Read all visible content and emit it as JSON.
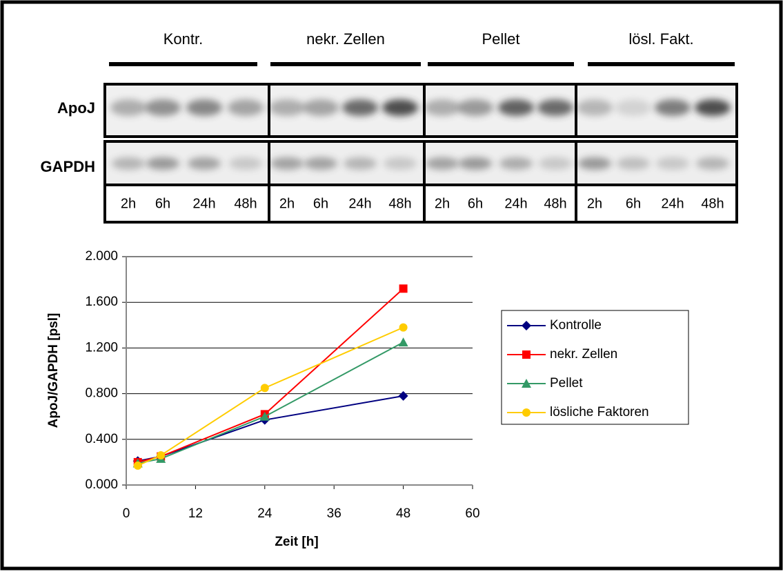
{
  "blot": {
    "groups": [
      {
        "label": "Kontr.",
        "lanes": [
          "2h",
          "6h",
          "24h",
          "48h"
        ]
      },
      {
        "label": "nekr. Zellen",
        "lanes": [
          "2h",
          "6h",
          "24h",
          "48h"
        ]
      },
      {
        "label": "Pellet",
        "lanes": [
          "2h",
          "6h",
          "24h",
          "48h"
        ]
      },
      {
        "label": "lösl. Fakt.",
        "lanes": [
          "2h",
          "6h",
          "24h",
          "48h"
        ]
      }
    ],
    "rows": [
      "ApoJ",
      "GAPDH"
    ]
  },
  "chart_data": {
    "type": "line",
    "x_label": "Zeit [h]",
    "y_label": "ApoJ/GAPDH [psl]",
    "x": [
      2,
      6,
      24,
      48
    ],
    "xlim": [
      0,
      60
    ],
    "xticks": [
      0,
      12,
      24,
      36,
      48,
      60
    ],
    "ylim": [
      0,
      2
    ],
    "yticks": [
      {
        "value": 0,
        "label": "0.000"
      },
      {
        "value": 0.4,
        "label": "0.400"
      },
      {
        "value": 0.8,
        "label": "0.800"
      },
      {
        "value": 1.2,
        "label": "1.200"
      },
      {
        "value": 1.6,
        "label": "1.600"
      },
      {
        "value": 2,
        "label": "2.000"
      }
    ],
    "grid": true,
    "legend": "right",
    "series": [
      {
        "name": "Kontrolle",
        "color": "#000080",
        "marker": "diamond",
        "values": [
          0.21,
          0.25,
          0.57,
          0.78
        ]
      },
      {
        "name": "nekr. Zellen",
        "color": "#ff0000",
        "marker": "square",
        "values": [
          0.2,
          0.25,
          0.62,
          1.72
        ]
      },
      {
        "name": "Pellet",
        "color": "#339966",
        "marker": "triangle",
        "values": [
          0.19,
          0.23,
          0.6,
          1.25
        ]
      },
      {
        "name": "lösliche Faktoren",
        "color": "#ffcc00",
        "marker": "circle",
        "values": [
          0.17,
          0.26,
          0.85,
          1.38
        ]
      }
    ]
  }
}
